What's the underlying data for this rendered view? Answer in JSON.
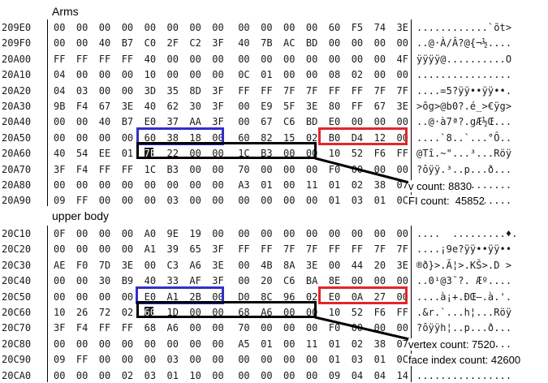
{
  "sections": [
    {
      "title": "Arms",
      "rows": [
        {
          "addr": "209E0",
          "bytes": [
            "00",
            "00",
            "00",
            "00",
            "00",
            "00",
            "00",
            "00",
            "00",
            "00",
            "00",
            "00",
            "60",
            "F5",
            "74",
            "3E"
          ],
          "ascii": "............`õt>"
        },
        {
          "addr": "209F0",
          "bytes": [
            "00",
            "00",
            "40",
            "B7",
            "C0",
            "2F",
            "C2",
            "3F",
            "40",
            "7B",
            "AC",
            "BD",
            "00",
            "00",
            "00",
            "00"
          ],
          "ascii": "..@·À/Â?@{¬½...."
        },
        {
          "addr": "20A00",
          "bytes": [
            "FF",
            "FF",
            "FF",
            "FF",
            "40",
            "00",
            "00",
            "00",
            "00",
            "00",
            "00",
            "00",
            "00",
            "00",
            "00",
            "4F"
          ],
          "ascii": "ÿÿÿÿ@..........O"
        },
        {
          "addr": "20A10",
          "bytes": [
            "04",
            "00",
            "00",
            "00",
            "10",
            "00",
            "00",
            "00",
            "0C",
            "01",
            "00",
            "00",
            "08",
            "02",
            "00",
            "00"
          ],
          "ascii": "................"
        },
        {
          "addr": "20A20",
          "bytes": [
            "04",
            "03",
            "00",
            "00",
            "3D",
            "35",
            "8D",
            "3F",
            "FF",
            "FF",
            "7F",
            "7F",
            "FF",
            "FF",
            "7F",
            "7F"
          ],
          "ascii": "....=5?ÿÿ••ÿÿ••."
        },
        {
          "addr": "20A30",
          "bytes": [
            "9B",
            "F4",
            "67",
            "3E",
            "40",
            "62",
            "30",
            "3F",
            "00",
            "E9",
            "5F",
            "3E",
            "80",
            "FF",
            "67",
            "3E"
          ],
          "ascii": ">ôg>@b0?.é_>€ÿg>"
        },
        {
          "addr": "20A40",
          "bytes": [
            "00",
            "00",
            "40",
            "B7",
            "E0",
            "37",
            "AA",
            "3F",
            "00",
            "67",
            "C6",
            "BD",
            "E0",
            "00",
            "00",
            "00"
          ],
          "ascii": "..@·à7ª?.gÆ½Œ..."
        },
        {
          "addr": "20A50",
          "bytes": [
            "00",
            "00",
            "00",
            "00",
            "60",
            "38",
            "18",
            "00",
            "60",
            "82",
            "15",
            "02",
            "B0",
            "D4",
            "12",
            "00"
          ],
          "ascii": "....`8..`...°Ô.."
        },
        {
          "addr": "20A60",
          "bytes": [
            "40",
            "54",
            "EE",
            "01",
            "7E",
            "22",
            "00",
            "00",
            "1C",
            "B3",
            "00",
            "00",
            "10",
            "52",
            "F6",
            "FF"
          ],
          "ascii": "@Tî.~\"...³...Röÿ"
        },
        {
          "addr": "20A70",
          "bytes": [
            "3F",
            "F4",
            "FF",
            "FF",
            "1C",
            "B3",
            "00",
            "00",
            "70",
            "00",
            "00",
            "00",
            "F0",
            "00",
            "00",
            "00"
          ],
          "ascii": "?ôÿÿ.³..p...ð..."
        },
        {
          "addr": "20A80",
          "bytes": [
            "00",
            "00",
            "00",
            "00",
            "00",
            "00",
            "00",
            "00",
            "A3",
            "01",
            "00",
            "11",
            "01",
            "02",
            "38",
            "07"
          ],
          "ascii": "................"
        },
        {
          "addr": "20A90",
          "bytes": [
            "09",
            "FF",
            "00",
            "00",
            "00",
            "03",
            "00",
            "00",
            "00",
            "00",
            "00",
            "00",
            "01",
            "03",
            "01",
            "0C"
          ],
          "ascii": "................"
        }
      ],
      "notes": [
        "v count: 8830",
        "FI count:  45852"
      ]
    },
    {
      "title": "upper body",
      "rows": [
        {
          "addr": "20C10",
          "bytes": [
            "0F",
            "00",
            "00",
            "00",
            "A0",
            "9E",
            "19",
            "00",
            "00",
            "00",
            "00",
            "00",
            "00",
            "00",
            "00",
            "00"
          ],
          "ascii": "....  .........♦."
        },
        {
          "addr": "20C20",
          "bytes": [
            "00",
            "00",
            "00",
            "00",
            "A1",
            "39",
            "65",
            "3F",
            "FF",
            "FF",
            "7F",
            "7F",
            "FF",
            "FF",
            "7F",
            "7F"
          ],
          "ascii": "....¡9e?ÿÿ••ÿÿ••"
        },
        {
          "addr": "20C30",
          "bytes": [
            "AE",
            "F0",
            "7D",
            "3E",
            "00",
            "C3",
            "A6",
            "3E",
            "00",
            "4B",
            "8A",
            "3E",
            "00",
            "44",
            "20",
            "3E"
          ],
          "ascii": "®ð}>.Ã¦>.KŠ>.D >"
        },
        {
          "addr": "20C40",
          "bytes": [
            "00",
            "00",
            "30",
            "B9",
            "40",
            "33",
            "AF",
            "3F",
            "00",
            "20",
            "C6",
            "BA",
            "8E",
            "00",
            "00",
            "00"
          ],
          "ascii": "..0¹@3¯?. Æº...."
        },
        {
          "addr": "20C50",
          "bytes": [
            "00",
            "00",
            "00",
            "00",
            "E0",
            "A1",
            "2B",
            "00",
            "D0",
            "8C",
            "96",
            "02",
            "E0",
            "0A",
            "27",
            "00"
          ],
          "ascii": "....à¡+.ÐŒ–.à.'."
        },
        {
          "addr": "20C60",
          "bytes": [
            "10",
            "26",
            "72",
            "02",
            "60",
            "1D",
            "00",
            "00",
            "68",
            "A6",
            "00",
            "00",
            "10",
            "52",
            "F6",
            "FF"
          ],
          "ascii": ".&r.`...h¦...Röÿ"
        },
        {
          "addr": "20C70",
          "bytes": [
            "3F",
            "F4",
            "FF",
            "FF",
            "68",
            "A6",
            "00",
            "00",
            "70",
            "00",
            "00",
            "00",
            "F0",
            "00",
            "00",
            "00"
          ],
          "ascii": "?ôÿÿh¦..p...ð..."
        },
        {
          "addr": "20C80",
          "bytes": [
            "00",
            "00",
            "00",
            "00",
            "00",
            "00",
            "00",
            "00",
            "A5",
            "01",
            "00",
            "11",
            "01",
            "02",
            "38",
            "07"
          ],
          "ascii": "................"
        },
        {
          "addr": "20C90",
          "bytes": [
            "09",
            "FF",
            "00",
            "00",
            "00",
            "03",
            "00",
            "00",
            "00",
            "00",
            "00",
            "00",
            "01",
            "03",
            "01",
            "0C"
          ],
          "ascii": "................"
        },
        {
          "addr": "20CA0",
          "bytes": [
            "00",
            "00",
            "00",
            "02",
            "03",
            "01",
            "10",
            "00",
            "00",
            "00",
            "00",
            "00",
            "09",
            "04",
            "04",
            "14"
          ],
          "ascii": "................"
        }
      ],
      "notes": [
        "vertex count: 7520",
        "face index count: 42600"
      ]
    }
  ],
  "colors": {
    "blue_box": "#3131c8",
    "red_box": "#e2262b",
    "black_box": "#000000"
  }
}
